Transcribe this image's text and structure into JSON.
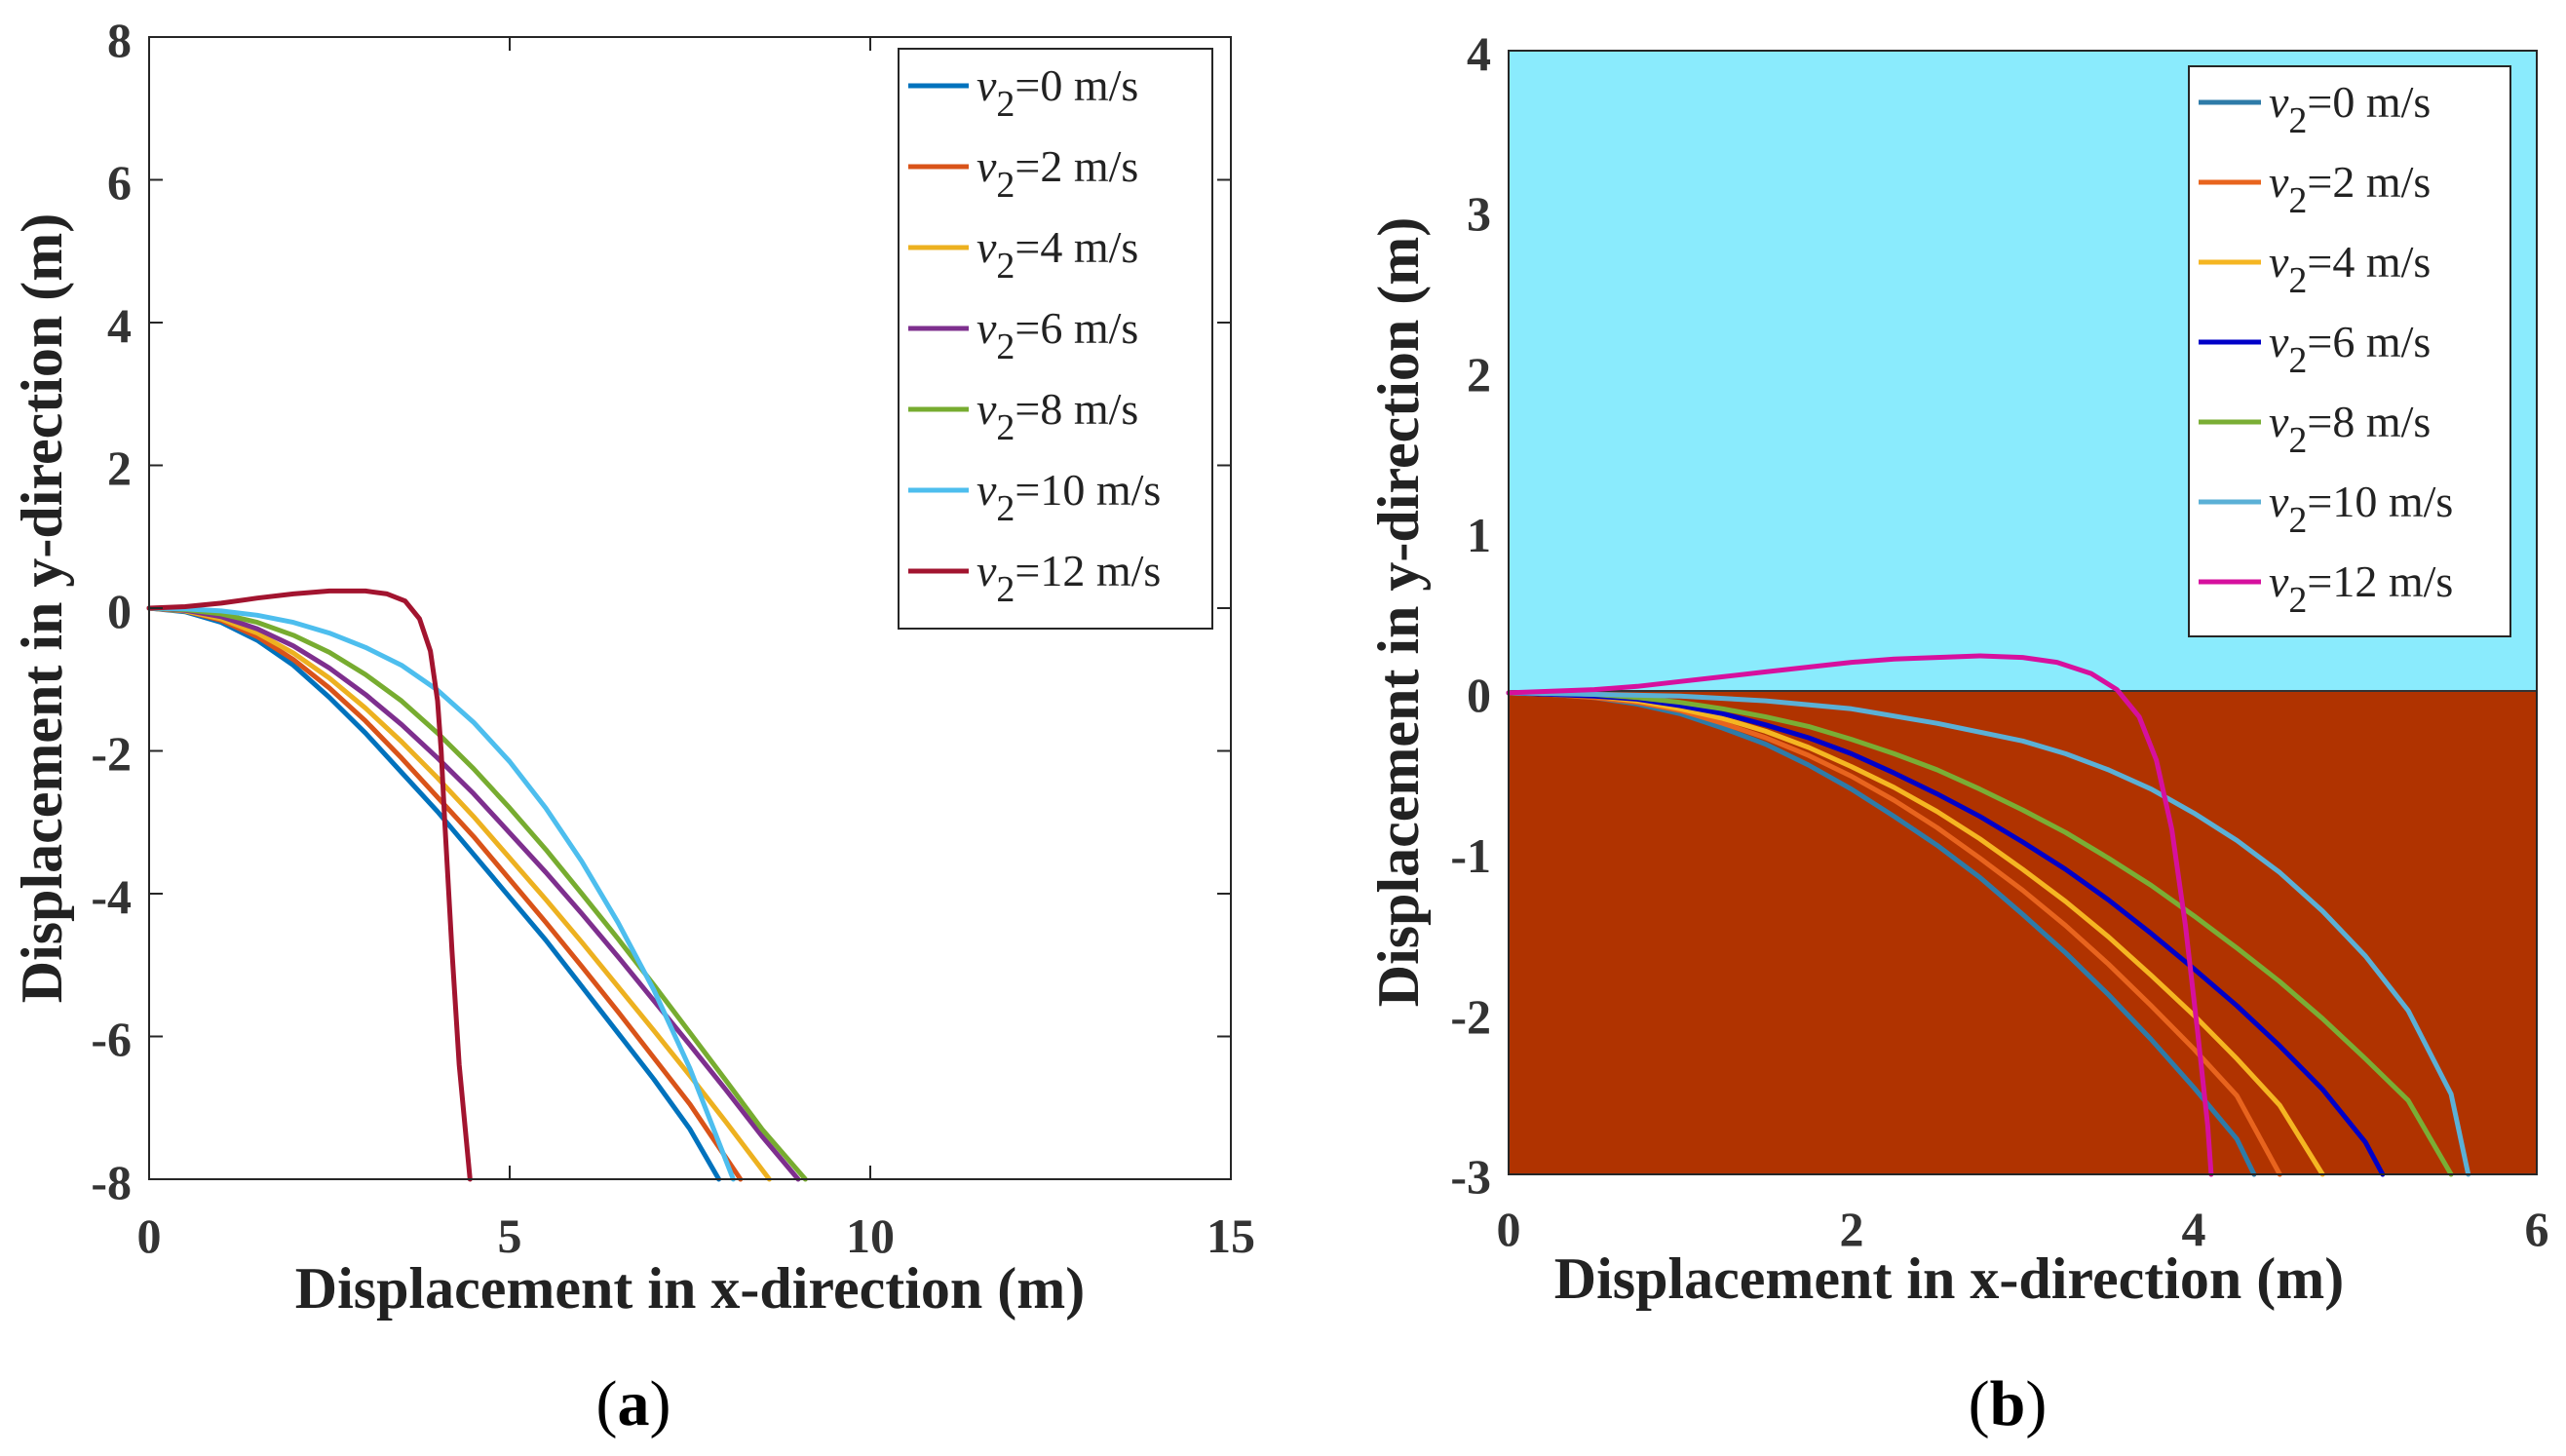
{
  "chart_data": [
    {
      "type": "line",
      "panel_label": "a",
      "xlabel": "Displacement in x-direction (m)",
      "ylabel": "Displacement in y-direction (m)",
      "xlim": [
        0,
        15
      ],
      "ylim": [
        -8,
        8
      ],
      "xticks": [
        "0",
        "5",
        "10",
        "15"
      ],
      "yticks": [
        "8",
        "6",
        "4",
        "2",
        "0",
        "-2",
        "-4",
        "-6",
        "-8"
      ],
      "background": "#ffffff",
      "legend_position": "top-right",
      "series": [
        {
          "name_var": "v",
          "name_sub": "2",
          "name_rest": "=0 m/s",
          "color": "#0072BD",
          "x": [
            0,
            0.5,
            1,
            1.5,
            2,
            2.5,
            3,
            3.5,
            4,
            4.5,
            5,
            5.5,
            6,
            6.5,
            7,
            7.5,
            7.9
          ],
          "y": [
            0,
            -0.05,
            -0.2,
            -0.45,
            -0.8,
            -1.25,
            -1.75,
            -2.3,
            -2.85,
            -3.45,
            -4.05,
            -4.65,
            -5.3,
            -5.95,
            -6.6,
            -7.3,
            -8
          ]
        },
        {
          "name_var": "v",
          "name_sub": "2",
          "name_rest": "=2 m/s",
          "color": "#D95319",
          "x": [
            0,
            0.5,
            1,
            1.5,
            2,
            2.5,
            3,
            3.5,
            4,
            4.5,
            5,
            5.5,
            6,
            6.5,
            7,
            7.5,
            8.2
          ],
          "y": [
            0,
            -0.04,
            -0.17,
            -0.4,
            -0.72,
            -1.12,
            -1.58,
            -2.1,
            -2.65,
            -3.2,
            -3.8,
            -4.4,
            -5.02,
            -5.65,
            -6.3,
            -6.95,
            -8
          ]
        },
        {
          "name_var": "v",
          "name_sub": "2",
          "name_rest": "=4 m/s",
          "color": "#EDB120",
          "x": [
            0,
            0.5,
            1,
            1.5,
            2,
            2.5,
            3,
            3.5,
            4,
            4.5,
            5,
            5.5,
            6,
            6.5,
            7,
            7.5,
            8,
            8.6
          ],
          "y": [
            0,
            -0.04,
            -0.15,
            -0.35,
            -0.63,
            -0.98,
            -1.4,
            -1.87,
            -2.38,
            -2.92,
            -3.5,
            -4.08,
            -4.68,
            -5.3,
            -5.92,
            -6.55,
            -7.2,
            -8
          ]
        },
        {
          "name_var": "v",
          "name_sub": "2",
          "name_rest": "=6 m/s",
          "color": "#7E2F8E",
          "x": [
            0,
            0.5,
            1,
            1.5,
            2,
            2.5,
            3,
            3.5,
            4,
            4.5,
            5,
            5.5,
            6,
            6.5,
            7,
            7.5,
            8,
            8.5,
            9.0
          ],
          "y": [
            0,
            -0.03,
            -0.12,
            -0.29,
            -0.53,
            -0.84,
            -1.21,
            -1.63,
            -2.1,
            -2.6,
            -3.15,
            -3.7,
            -4.28,
            -4.88,
            -5.5,
            -6.12,
            -6.75,
            -7.4,
            -8
          ]
        },
        {
          "name_var": "v",
          "name_sub": "2",
          "name_rest": "=8 m/s",
          "color": "#77AC30",
          "x": [
            0,
            0.5,
            1,
            1.5,
            2,
            2.5,
            3,
            3.5,
            4,
            4.5,
            5,
            5.5,
            6,
            6.5,
            7,
            7.5,
            8,
            8.5,
            9.1
          ],
          "y": [
            0,
            -0.02,
            -0.08,
            -0.2,
            -0.38,
            -0.62,
            -0.93,
            -1.3,
            -1.75,
            -2.25,
            -2.8,
            -3.38,
            -4.0,
            -4.63,
            -5.28,
            -5.95,
            -6.62,
            -7.3,
            -8
          ]
        },
        {
          "name_var": "v",
          "name_sub": "2",
          "name_rest": "=10 m/s",
          "color": "#4DBEEE",
          "x": [
            0,
            0.5,
            1,
            1.5,
            2,
            2.5,
            3,
            3.5,
            4,
            4.5,
            5,
            5.5,
            6,
            6.5,
            7,
            7.5,
            8.1
          ],
          "y": [
            0,
            -0.01,
            -0.04,
            -0.1,
            -0.2,
            -0.35,
            -0.55,
            -0.8,
            -1.15,
            -1.6,
            -2.15,
            -2.8,
            -3.55,
            -4.4,
            -5.35,
            -6.45,
            -8
          ]
        },
        {
          "name_var": "v",
          "name_sub": "2",
          "name_rest": "=12 m/s",
          "color": "#A2142F",
          "x": [
            0,
            0.5,
            1,
            1.5,
            2,
            2.5,
            3,
            3.3,
            3.55,
            3.75,
            3.9,
            4.0,
            4.05,
            4.1,
            4.2,
            4.3,
            4.45
          ],
          "y": [
            0,
            0.02,
            0.07,
            0.14,
            0.2,
            0.24,
            0.24,
            0.2,
            0.1,
            -0.15,
            -0.6,
            -1.3,
            -2.0,
            -3.0,
            -4.8,
            -6.4,
            -8
          ]
        }
      ]
    },
    {
      "type": "line",
      "panel_label": "b",
      "xlabel": "Displacement in x-direction (m)",
      "ylabel": "Displacement in y-direction (m)",
      "xlim": [
        0,
        6
      ],
      "ylim": [
        -3,
        4
      ],
      "xticks": [
        "0",
        "2",
        "4",
        "6"
      ],
      "yticks": [
        "4",
        "3",
        "2",
        "1",
        "0",
        "-1",
        "-2",
        "-3"
      ],
      "background_upper": "#8AEBFD",
      "background_lower": "#B03300",
      "legend_position": "top-right",
      "series": [
        {
          "name_var": "v",
          "name_sub": "2",
          "name_rest": "=0 m/s",
          "color": "#2E7BA8",
          "x": [
            0,
            0.25,
            0.5,
            0.75,
            1,
            1.25,
            1.5,
            1.75,
            2,
            2.25,
            2.5,
            2.75,
            3,
            3.25,
            3.5,
            3.75,
            4,
            4.25,
            4.35
          ],
          "y": [
            0,
            -0.01,
            -0.03,
            -0.07,
            -0.13,
            -0.22,
            -0.32,
            -0.45,
            -0.6,
            -0.77,
            -0.95,
            -1.15,
            -1.38,
            -1.62,
            -1.88,
            -2.16,
            -2.46,
            -2.78,
            -3
          ]
        },
        {
          "name_var": "v",
          "name_sub": "2",
          "name_rest": "=2 m/s",
          "color": "#E8641E",
          "x": [
            0,
            0.25,
            0.5,
            0.75,
            1,
            1.25,
            1.5,
            1.75,
            2,
            2.25,
            2.5,
            2.75,
            3,
            3.25,
            3.5,
            3.75,
            4,
            4.25,
            4.5
          ],
          "y": [
            0,
            -0.01,
            -0.03,
            -0.06,
            -0.11,
            -0.19,
            -0.28,
            -0.39,
            -0.52,
            -0.67,
            -0.84,
            -1.03,
            -1.23,
            -1.45,
            -1.69,
            -1.95,
            -2.22,
            -2.51,
            -3
          ]
        },
        {
          "name_var": "v",
          "name_sub": "2",
          "name_rest": "=4 m/s",
          "color": "#F5B622",
          "x": [
            0,
            0.25,
            0.5,
            0.75,
            1,
            1.25,
            1.5,
            1.75,
            2,
            2.25,
            2.5,
            2.75,
            3,
            3.25,
            3.5,
            3.75,
            4,
            4.25,
            4.5,
            4.75
          ],
          "y": [
            0,
            -0.01,
            -0.02,
            -0.05,
            -0.1,
            -0.16,
            -0.24,
            -0.34,
            -0.46,
            -0.59,
            -0.74,
            -0.91,
            -1.1,
            -1.3,
            -1.52,
            -1.76,
            -2.01,
            -2.28,
            -2.57,
            -3
          ]
        },
        {
          "name_var": "v",
          "name_sub": "2",
          "name_rest": "=6 m/s",
          "color": "#0000C8",
          "x": [
            0,
            0.25,
            0.5,
            0.75,
            1,
            1.25,
            1.5,
            1.75,
            2,
            2.25,
            2.5,
            2.75,
            3,
            3.25,
            3.5,
            3.75,
            4,
            4.25,
            4.5,
            4.75,
            5.0,
            5.1
          ],
          "y": [
            0,
            -0.01,
            -0.02,
            -0.04,
            -0.08,
            -0.13,
            -0.2,
            -0.28,
            -0.38,
            -0.5,
            -0.63,
            -0.77,
            -0.93,
            -1.1,
            -1.29,
            -1.5,
            -1.72,
            -1.95,
            -2.2,
            -2.47,
            -2.8,
            -3
          ]
        },
        {
          "name_var": "v",
          "name_sub": "2",
          "name_rest": "=8 m/s",
          "color": "#7AAE35",
          "x": [
            0,
            0.25,
            0.5,
            0.75,
            1,
            1.25,
            1.5,
            1.75,
            2,
            2.25,
            2.5,
            2.75,
            3,
            3.25,
            3.5,
            3.75,
            4,
            4.25,
            4.5,
            4.75,
            5.0,
            5.25,
            5.5
          ],
          "y": [
            0,
            0,
            -0.01,
            -0.03,
            -0.06,
            -0.1,
            -0.15,
            -0.21,
            -0.29,
            -0.38,
            -0.48,
            -0.6,
            -0.73,
            -0.87,
            -1.03,
            -1.2,
            -1.39,
            -1.59,
            -1.8,
            -2.03,
            -2.28,
            -2.54,
            -3
          ]
        },
        {
          "name_var": "v",
          "name_sub": "2",
          "name_rest": "=10 m/s",
          "color": "#5BB0D6",
          "x": [
            0,
            0.5,
            1,
            1.5,
            2,
            2.5,
            3,
            3.25,
            3.5,
            3.75,
            4,
            4.25,
            4.5,
            4.75,
            5.0,
            5.25,
            5.5,
            5.6
          ],
          "y": [
            0,
            -0.01,
            -0.02,
            -0.05,
            -0.1,
            -0.19,
            -0.3,
            -0.38,
            -0.48,
            -0.6,
            -0.75,
            -0.92,
            -1.12,
            -1.36,
            -1.64,
            -1.98,
            -2.5,
            -3
          ]
        },
        {
          "name_var": "v",
          "name_sub": "2",
          "name_rest": "=12 m/s",
          "color": "#D6109E",
          "x": [
            0,
            0.25,
            0.5,
            0.75,
            1,
            1.25,
            1.5,
            1.75,
            2,
            2.25,
            2.5,
            2.75,
            3,
            3.2,
            3.4,
            3.55,
            3.68,
            3.78,
            3.87,
            3.95,
            4.02,
            4.08,
            4.1
          ],
          "y": [
            0,
            0.01,
            0.02,
            0.04,
            0.07,
            0.1,
            0.13,
            0.16,
            0.19,
            0.21,
            0.22,
            0.23,
            0.22,
            0.19,
            0.12,
            0.02,
            -0.15,
            -0.42,
            -0.85,
            -1.45,
            -2.1,
            -2.7,
            -3
          ]
        }
      ]
    }
  ]
}
